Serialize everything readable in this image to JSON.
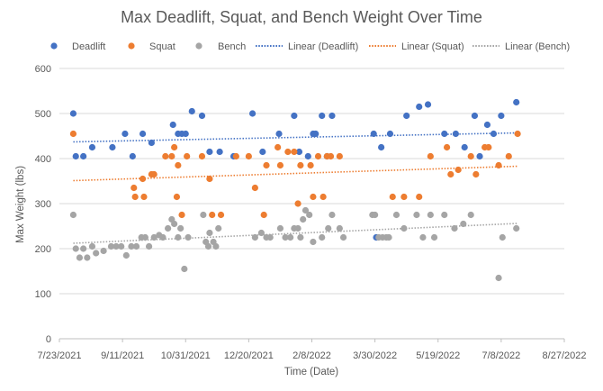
{
  "chart_data": {
    "type": "scatter",
    "title": "Max Deadlift, Squat, and Bench Weight Over Time",
    "xlabel": "Time (Date)",
    "ylabel": "Max Weight (lbs)",
    "x_axis_type": "date",
    "xlim": [
      "2021-07-23",
      "2022-08-27"
    ],
    "ylim": [
      0,
      600
    ],
    "y_ticks": [
      0,
      100,
      200,
      300,
      400,
      500,
      600
    ],
    "x_ticks": [
      "2021-07-23",
      "2021-09-11",
      "2021-10-31",
      "2021-12-20",
      "2022-02-08",
      "2022-03-30",
      "2022-05-19",
      "2022-07-08",
      "2022-08-27"
    ],
    "x_tick_labels": [
      "7/23/2021",
      "9/11/2021",
      "10/31/2021",
      "12/20/2021",
      "2/8/2022",
      "3/30/2022",
      "5/19/2022",
      "7/8/2022",
      "8/27/2022"
    ],
    "grid": "horizontal",
    "legend_position": "top",
    "series": [
      {
        "name": "Deadlift",
        "color": "#4472C4",
        "points": [
          {
            "x": "2021-08-03",
            "y": 500
          },
          {
            "x": "2021-08-05",
            "y": 405
          },
          {
            "x": "2021-08-11",
            "y": 405
          },
          {
            "x": "2021-08-18",
            "y": 425
          },
          {
            "x": "2021-09-03",
            "y": 425
          },
          {
            "x": "2021-09-13",
            "y": 455
          },
          {
            "x": "2021-09-19",
            "y": 405
          },
          {
            "x": "2021-09-27",
            "y": 455
          },
          {
            "x": "2021-10-04",
            "y": 435
          },
          {
            "x": "2021-10-21",
            "y": 475
          },
          {
            "x": "2021-10-25",
            "y": 455
          },
          {
            "x": "2021-10-28",
            "y": 455
          },
          {
            "x": "2021-10-31",
            "y": 455
          },
          {
            "x": "2021-11-05",
            "y": 505
          },
          {
            "x": "2021-11-13",
            "y": 495
          },
          {
            "x": "2021-11-19",
            "y": 415
          },
          {
            "x": "2021-11-27",
            "y": 415
          },
          {
            "x": "2021-12-08",
            "y": 405
          },
          {
            "x": "2021-12-23",
            "y": 500
          },
          {
            "x": "2021-12-31",
            "y": 415
          },
          {
            "x": "2022-01-13",
            "y": 455
          },
          {
            "x": "2022-01-25",
            "y": 495
          },
          {
            "x": "2022-01-29",
            "y": 415
          },
          {
            "x": "2022-02-05",
            "y": 405
          },
          {
            "x": "2022-02-09",
            "y": 455
          },
          {
            "x": "2022-02-11",
            "y": 455
          },
          {
            "x": "2022-02-16",
            "y": 495
          },
          {
            "x": "2022-02-20",
            "y": 405
          },
          {
            "x": "2022-02-24",
            "y": 495
          },
          {
            "x": "2022-03-29",
            "y": 455
          },
          {
            "x": "2022-03-31",
            "y": 225
          },
          {
            "x": "2022-04-04",
            "y": 425
          },
          {
            "x": "2022-04-11",
            "y": 455
          },
          {
            "x": "2022-04-24",
            "y": 495
          },
          {
            "x": "2022-05-04",
            "y": 515
          },
          {
            "x": "2022-05-11",
            "y": 520
          },
          {
            "x": "2022-05-24",
            "y": 455
          },
          {
            "x": "2022-06-02",
            "y": 455
          },
          {
            "x": "2022-06-09",
            "y": 425
          },
          {
            "x": "2022-06-17",
            "y": 495
          },
          {
            "x": "2022-06-21",
            "y": 405
          },
          {
            "x": "2022-06-27",
            "y": 475
          },
          {
            "x": "2022-07-02",
            "y": 455
          },
          {
            "x": "2022-07-08",
            "y": 495
          },
          {
            "x": "2022-07-20",
            "y": 525
          }
        ]
      },
      {
        "name": "Squat",
        "color": "#ED7D31",
        "points": [
          {
            "x": "2021-08-03",
            "y": 455
          },
          {
            "x": "2021-09-20",
            "y": 335
          },
          {
            "x": "2021-09-21",
            "y": 315
          },
          {
            "x": "2021-09-27",
            "y": 355
          },
          {
            "x": "2021-09-28",
            "y": 315
          },
          {
            "x": "2021-10-04",
            "y": 365
          },
          {
            "x": "2021-10-06",
            "y": 365
          },
          {
            "x": "2021-10-15",
            "y": 405
          },
          {
            "x": "2021-10-20",
            "y": 405
          },
          {
            "x": "2021-10-22",
            "y": 425
          },
          {
            "x": "2021-10-24",
            "y": 315
          },
          {
            "x": "2021-10-25",
            "y": 385
          },
          {
            "x": "2021-10-28",
            "y": 275
          },
          {
            "x": "2021-11-01",
            "y": 405
          },
          {
            "x": "2021-11-13",
            "y": 405
          },
          {
            "x": "2021-11-19",
            "y": 355
          },
          {
            "x": "2021-11-21",
            "y": 275
          },
          {
            "x": "2021-11-28",
            "y": 275
          },
          {
            "x": "2021-12-10",
            "y": 405
          },
          {
            "x": "2021-12-20",
            "y": 405
          },
          {
            "x": "2021-12-25",
            "y": 335
          },
          {
            "x": "2022-01-01",
            "y": 275
          },
          {
            "x": "2022-01-03",
            "y": 385
          },
          {
            "x": "2022-01-12",
            "y": 425
          },
          {
            "x": "2022-01-14",
            "y": 385
          },
          {
            "x": "2022-01-20",
            "y": 415
          },
          {
            "x": "2022-01-25",
            "y": 415
          },
          {
            "x": "2022-01-28",
            "y": 300
          },
          {
            "x": "2022-01-30",
            "y": 385
          },
          {
            "x": "2022-02-07",
            "y": 385
          },
          {
            "x": "2022-02-09",
            "y": 315
          },
          {
            "x": "2022-02-13",
            "y": 405
          },
          {
            "x": "2022-02-17",
            "y": 315
          },
          {
            "x": "2022-02-20",
            "y": 405
          },
          {
            "x": "2022-02-23",
            "y": 405
          },
          {
            "x": "2022-03-02",
            "y": 405
          },
          {
            "x": "2022-04-13",
            "y": 315
          },
          {
            "x": "2022-04-22",
            "y": 315
          },
          {
            "x": "2022-05-04",
            "y": 315
          },
          {
            "x": "2022-05-13",
            "y": 405
          },
          {
            "x": "2022-05-26",
            "y": 425
          },
          {
            "x": "2022-05-29",
            "y": 365
          },
          {
            "x": "2022-06-04",
            "y": 375
          },
          {
            "x": "2022-06-14",
            "y": 405
          },
          {
            "x": "2022-06-18",
            "y": 365
          },
          {
            "x": "2022-06-25",
            "y": 425
          },
          {
            "x": "2022-06-28",
            "y": 425
          },
          {
            "x": "2022-07-06",
            "y": 385
          },
          {
            "x": "2022-07-14",
            "y": 405
          },
          {
            "x": "2022-07-21",
            "y": 455
          }
        ]
      },
      {
        "name": "Bench",
        "color": "#A5A5A5",
        "points": [
          {
            "x": "2021-08-03",
            "y": 275
          },
          {
            "x": "2021-08-05",
            "y": 200
          },
          {
            "x": "2021-08-08",
            "y": 180
          },
          {
            "x": "2021-08-11",
            "y": 200
          },
          {
            "x": "2021-08-14",
            "y": 180
          },
          {
            "x": "2021-08-18",
            "y": 205
          },
          {
            "x": "2021-08-21",
            "y": 190
          },
          {
            "x": "2021-08-27",
            "y": 195
          },
          {
            "x": "2021-09-02",
            "y": 205
          },
          {
            "x": "2021-09-06",
            "y": 205
          },
          {
            "x": "2021-09-10",
            "y": 205
          },
          {
            "x": "2021-09-14",
            "y": 185
          },
          {
            "x": "2021-09-18",
            "y": 205
          },
          {
            "x": "2021-09-22",
            "y": 205
          },
          {
            "x": "2021-09-26",
            "y": 225
          },
          {
            "x": "2021-09-29",
            "y": 225
          },
          {
            "x": "2021-10-02",
            "y": 205
          },
          {
            "x": "2021-10-06",
            "y": 225
          },
          {
            "x": "2021-10-10",
            "y": 230
          },
          {
            "x": "2021-10-13",
            "y": 225
          },
          {
            "x": "2021-10-17",
            "y": 245
          },
          {
            "x": "2021-10-20",
            "y": 265
          },
          {
            "x": "2021-10-22",
            "y": 255
          },
          {
            "x": "2021-10-25",
            "y": 225
          },
          {
            "x": "2021-10-27",
            "y": 245
          },
          {
            "x": "2021-10-30",
            "y": 155
          },
          {
            "x": "2021-11-02",
            "y": 225
          },
          {
            "x": "2021-11-14",
            "y": 275
          },
          {
            "x": "2021-11-16",
            "y": 215
          },
          {
            "x": "2021-11-18",
            "y": 205
          },
          {
            "x": "2021-11-19",
            "y": 235
          },
          {
            "x": "2021-11-22",
            "y": 215
          },
          {
            "x": "2021-11-24",
            "y": 205
          },
          {
            "x": "2021-11-26",
            "y": 245
          },
          {
            "x": "2021-12-25",
            "y": 225
          },
          {
            "x": "2021-12-30",
            "y": 235
          },
          {
            "x": "2022-01-03",
            "y": 225
          },
          {
            "x": "2022-01-06",
            "y": 225
          },
          {
            "x": "2022-01-14",
            "y": 245
          },
          {
            "x": "2022-01-18",
            "y": 225
          },
          {
            "x": "2022-01-22",
            "y": 225
          },
          {
            "x": "2022-01-25",
            "y": 245
          },
          {
            "x": "2022-01-28",
            "y": 245
          },
          {
            "x": "2022-01-30",
            "y": 225
          },
          {
            "x": "2022-02-01",
            "y": 265
          },
          {
            "x": "2022-02-03",
            "y": 285
          },
          {
            "x": "2022-02-06",
            "y": 275
          },
          {
            "x": "2022-02-09",
            "y": 215
          },
          {
            "x": "2022-02-16",
            "y": 225
          },
          {
            "x": "2022-02-21",
            "y": 245
          },
          {
            "x": "2022-02-24",
            "y": 275
          },
          {
            "x": "2022-03-02",
            "y": 245
          },
          {
            "x": "2022-03-05",
            "y": 225
          },
          {
            "x": "2022-03-28",
            "y": 275
          },
          {
            "x": "2022-03-30",
            "y": 275
          },
          {
            "x": "2022-04-02",
            "y": 225
          },
          {
            "x": "2022-04-05",
            "y": 225
          },
          {
            "x": "2022-04-08",
            "y": 225
          },
          {
            "x": "2022-04-10",
            "y": 225
          },
          {
            "x": "2022-04-16",
            "y": 275
          },
          {
            "x": "2022-04-22",
            "y": 245
          },
          {
            "x": "2022-05-02",
            "y": 275
          },
          {
            "x": "2022-05-07",
            "y": 225
          },
          {
            "x": "2022-05-13",
            "y": 275
          },
          {
            "x": "2022-05-16",
            "y": 225
          },
          {
            "x": "2022-05-24",
            "y": 275
          },
          {
            "x": "2022-06-01",
            "y": 245
          },
          {
            "x": "2022-06-08",
            "y": 255
          },
          {
            "x": "2022-06-14",
            "y": 275
          },
          {
            "x": "2022-07-06",
            "y": 135
          },
          {
            "x": "2022-07-09",
            "y": 225
          },
          {
            "x": "2022-07-20",
            "y": 245
          }
        ]
      }
    ],
    "trendlines": [
      {
        "name": "Linear (Deadlift)",
        "color": "#4472C4",
        "x": [
          "2021-08-03",
          "2022-07-21"
        ],
        "y": [
          437,
          457
        ]
      },
      {
        "name": "Linear (Squat)",
        "color": "#ED7D31",
        "x": [
          "2021-08-03",
          "2022-07-21"
        ],
        "y": [
          351,
          383
        ]
      },
      {
        "name": "Linear (Bench)",
        "color": "#A5A5A5",
        "x": [
          "2021-08-03",
          "2022-07-21"
        ],
        "y": [
          212,
          256
        ]
      }
    ]
  }
}
